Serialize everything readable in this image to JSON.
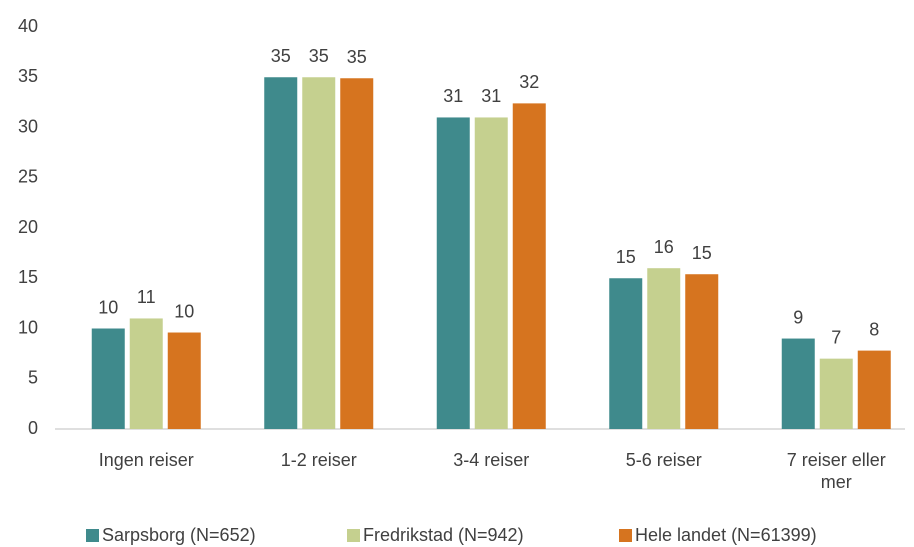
{
  "chart_data": {
    "type": "bar",
    "categories": [
      "Ingen reiser",
      "1-2 reiser",
      "3-4 reiser",
      "5-6 reiser",
      "7 reiser eller mer"
    ],
    "series": [
      {
        "name": "Sarpsborg (N=652)",
        "color": "#3f8a8c",
        "values": [
          10,
          35,
          31,
          15,
          9
        ],
        "value_labels": [
          "10",
          "35",
          "31",
          "15",
          "9"
        ]
      },
      {
        "name": "Fredrikstad (N=942)",
        "color": "#c5d08f",
        "values": [
          11,
          35,
          31,
          16,
          7
        ],
        "value_labels": [
          "11",
          "35",
          "31",
          "16",
          "7"
        ]
      },
      {
        "name": "Hele landet (N=61399)",
        "color": "#d6741f",
        "values": [
          9.6,
          34.9,
          32.4,
          15.4,
          7.8
        ],
        "value_labels": [
          "10",
          "35",
          "32",
          "15",
          "8"
        ]
      }
    ],
    "ylim": [
      0,
      40
    ],
    "yticks": [
      0,
      5,
      10,
      15,
      20,
      25,
      30,
      35,
      40
    ],
    "grid": false,
    "legend": "bottom"
  }
}
